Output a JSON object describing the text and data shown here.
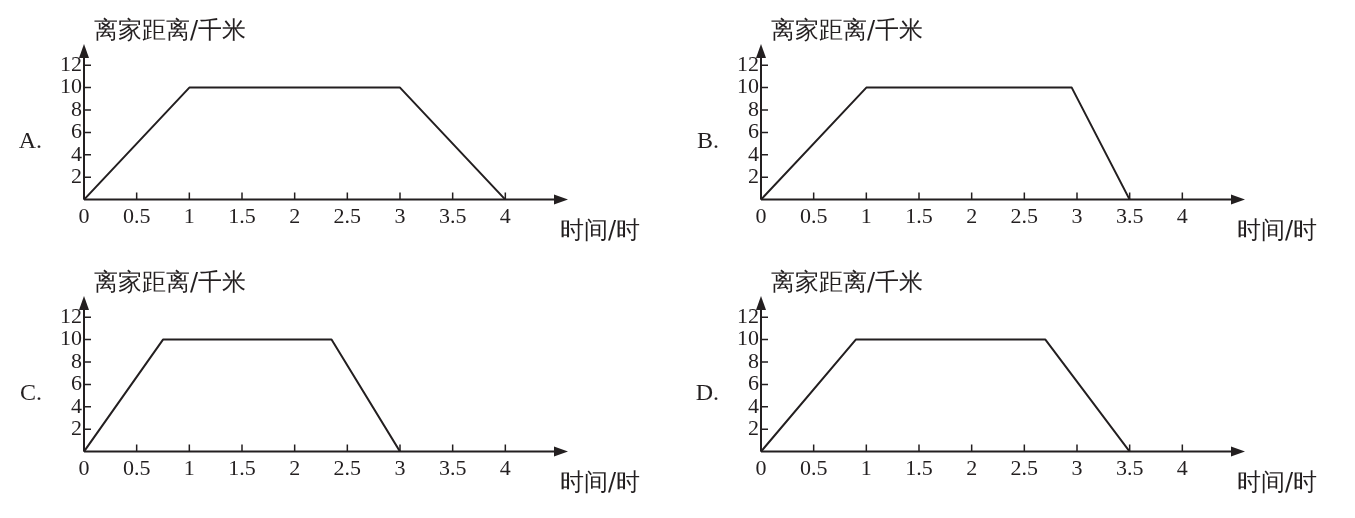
{
  "chart_data": [
    {
      "type": "line",
      "title": "A.",
      "xlabel": "时间/时",
      "ylabel": "离家距离/千米",
      "xlim": [
        0,
        4.5
      ],
      "ylim": [
        0,
        13
      ],
      "xticks": [
        0,
        0.5,
        1,
        1.5,
        2,
        2.5,
        3,
        3.5,
        4
      ],
      "yticks": [
        2,
        4,
        6,
        8,
        10,
        12
      ],
      "marker": "none",
      "line_style": "solid",
      "series": [
        {
          "color": "#231f20",
          "x": [
            0,
            1,
            3,
            4
          ],
          "values": [
            0,
            10,
            10,
            0
          ]
        }
      ]
    },
    {
      "type": "line",
      "title": "B.",
      "xlabel": "时间/时",
      "ylabel": "离家距离/千米",
      "xlim": [
        0,
        4.5
      ],
      "ylim": [
        0,
        13
      ],
      "xticks": [
        0,
        0.5,
        1,
        1.5,
        2,
        2.5,
        3,
        3.5,
        4
      ],
      "yticks": [
        2,
        4,
        6,
        8,
        10,
        12
      ],
      "marker": "none",
      "line_style": "solid",
      "series": [
        {
          "color": "#231f20",
          "x": [
            0,
            1,
            2.95,
            3.5
          ],
          "values": [
            0,
            10,
            10,
            0
          ]
        }
      ]
    },
    {
      "type": "line",
      "title": "C.",
      "xlabel": "时间/时",
      "ylabel": "离家距离/千米",
      "xlim": [
        0,
        4.5
      ],
      "ylim": [
        0,
        13
      ],
      "xticks": [
        0,
        0.5,
        1,
        1.5,
        2,
        2.5,
        3,
        3.5,
        4
      ],
      "yticks": [
        2,
        4,
        6,
        8,
        10,
        12
      ],
      "marker": "none",
      "line_style": "solid",
      "series": [
        {
          "color": "#231f20",
          "x": [
            0,
            0.75,
            2.35,
            3
          ],
          "values": [
            0,
            10,
            10,
            0
          ]
        }
      ]
    },
    {
      "type": "line",
      "title": "D.",
      "xlabel": "时间/时",
      "ylabel": "离家距离/千米",
      "xlim": [
        0,
        4.5
      ],
      "ylim": [
        0,
        13
      ],
      "xticks": [
        0,
        0.5,
        1,
        1.5,
        2,
        2.5,
        3,
        3.5,
        4
      ],
      "yticks": [
        2,
        4,
        6,
        8,
        10,
        12
      ],
      "marker": "none",
      "line_style": "solid",
      "series": [
        {
          "color": "#231f20",
          "x": [
            0,
            0.9,
            2.7,
            3.5
          ],
          "values": [
            0,
            10,
            10,
            0
          ]
        }
      ]
    }
  ]
}
